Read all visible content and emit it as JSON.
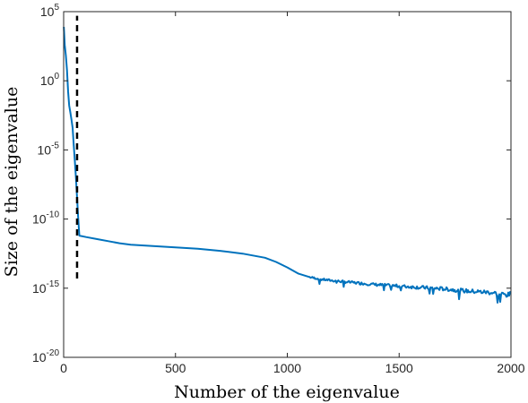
{
  "chart_data": {
    "type": "line",
    "xlabel": "Number of the eigenvalue",
    "ylabel": "Size of the eigenvalue",
    "xlim": [
      0,
      2000
    ],
    "ylim_log10": [
      -20,
      5
    ],
    "yscale": "log",
    "grid": false,
    "x_ticks": [
      {
        "value": 0,
        "label": "0"
      },
      {
        "value": 500,
        "label": "500"
      },
      {
        "value": 1000,
        "label": "1000"
      },
      {
        "value": 1500,
        "label": "1500"
      },
      {
        "value": 2000,
        "label": "2000"
      }
    ],
    "y_ticks": [
      {
        "value": 5,
        "base": "10",
        "exp": "5"
      },
      {
        "value": 0,
        "base": "10",
        "exp": "0"
      },
      {
        "value": -5,
        "base": "10",
        "exp": "-5"
      },
      {
        "value": -10,
        "base": "10",
        "exp": "-10"
      },
      {
        "value": -15,
        "base": "10",
        "exp": "-15"
      },
      {
        "value": -20,
        "base": "10",
        "exp": "-20"
      }
    ],
    "series": [
      {
        "color": "#0072BD",
        "points_log10": [
          [
            1,
            3.9
          ],
          [
            5,
            2.6
          ],
          [
            10,
            1.8
          ],
          [
            15,
            0.8
          ],
          [
            20,
            -0.8
          ],
          [
            25,
            -1.8
          ],
          [
            30,
            -2.3
          ],
          [
            35,
            -2.8
          ],
          [
            40,
            -3.4
          ],
          [
            45,
            -4.6
          ],
          [
            50,
            -5.8
          ],
          [
            55,
            -7.0
          ],
          [
            60,
            -8.5
          ],
          [
            65,
            -9.9
          ],
          [
            70,
            -11.2
          ],
          [
            100,
            -11.3
          ],
          [
            150,
            -11.45
          ],
          [
            200,
            -11.6
          ],
          [
            250,
            -11.75
          ],
          [
            300,
            -11.85
          ],
          [
            400,
            -11.95
          ],
          [
            500,
            -12.05
          ],
          [
            600,
            -12.15
          ],
          [
            700,
            -12.3
          ],
          [
            800,
            -12.5
          ],
          [
            900,
            -12.8
          ],
          [
            950,
            -13.1
          ],
          [
            1000,
            -13.5
          ],
          [
            1050,
            -13.95
          ],
          [
            1100,
            -14.2
          ],
          [
            1150,
            -14.35
          ],
          [
            1200,
            -14.45
          ],
          [
            1300,
            -14.6
          ],
          [
            1400,
            -14.75
          ],
          [
            1500,
            -14.85
          ],
          [
            1600,
            -14.95
          ],
          [
            1700,
            -15.05
          ],
          [
            1800,
            -15.2
          ],
          [
            1850,
            -15.25
          ],
          [
            1900,
            -15.3
          ],
          [
            1950,
            -15.4
          ],
          [
            1970,
            -15.45
          ],
          [
            1985,
            -15.5
          ],
          [
            2000,
            -15.4
          ]
        ],
        "noise_start": 1100,
        "noise_amplitude": 0.35
      }
    ],
    "reference_line": {
      "x": 60,
      "y_log10_from": -14.3,
      "y_log10_to": 4.7,
      "color": "#000000",
      "style": "dashed"
    }
  }
}
